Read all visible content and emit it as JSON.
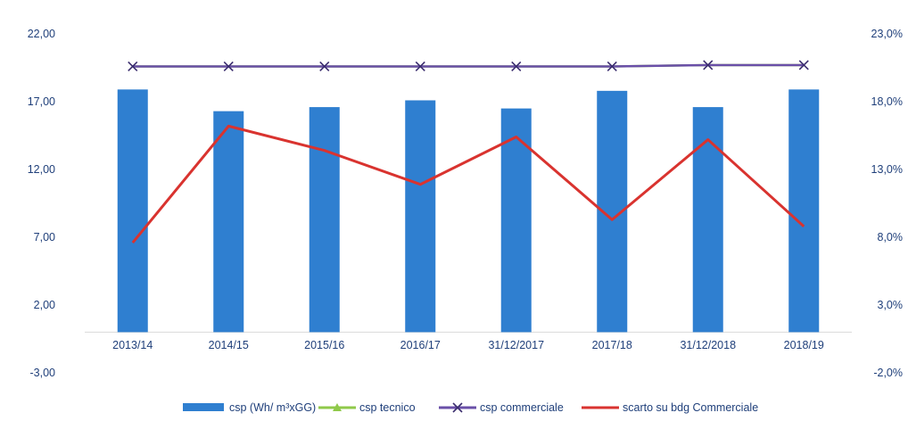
{
  "chart_data": {
    "type": "bar",
    "categories": [
      "2013/14",
      "2014/15",
      "2015/16",
      "2016/17",
      "31/12/2017",
      "2017/18",
      "31/12/2018",
      "2018/19"
    ],
    "left_axis": {
      "ticks": [
        "22,00",
        "17,00",
        "12,00",
        "7,00",
        "2,00",
        "-3,00"
      ],
      "min": -3,
      "max": 22
    },
    "right_axis": {
      "ticks": [
        "23,0%",
        "18,0%",
        "13,0%",
        "8,0%",
        "3,0%",
        "-2,0%"
      ],
      "min": -2,
      "max": 23
    },
    "series": [
      {
        "name": "csp (Wh/ m³xGG)",
        "kind": "bar",
        "axis": "left",
        "color": "#2f7fd0",
        "values": [
          17.9,
          16.3,
          16.6,
          17.1,
          16.5,
          17.8,
          16.6,
          17.9
        ]
      },
      {
        "name": "csp tecnico",
        "kind": "line",
        "axis": "left",
        "color": "#8fc94a",
        "values": [
          19.6,
          19.6,
          19.6,
          19.6,
          19.6,
          19.6,
          19.7,
          19.7
        ]
      },
      {
        "name": "csp commerciale",
        "kind": "line",
        "axis": "left",
        "color": "#6a4fa8",
        "values": [
          19.6,
          19.6,
          19.6,
          19.6,
          19.6,
          19.6,
          19.7,
          19.7
        ]
      },
      {
        "name": "scarto su bdg Commerciale",
        "kind": "line",
        "axis": "right",
        "color": "#d9332f",
        "values": [
          7.6,
          16.2,
          14.4,
          11.9,
          15.4,
          9.3,
          15.2,
          8.8
        ]
      }
    ],
    "grid": false,
    "legend_position": "bottom"
  }
}
